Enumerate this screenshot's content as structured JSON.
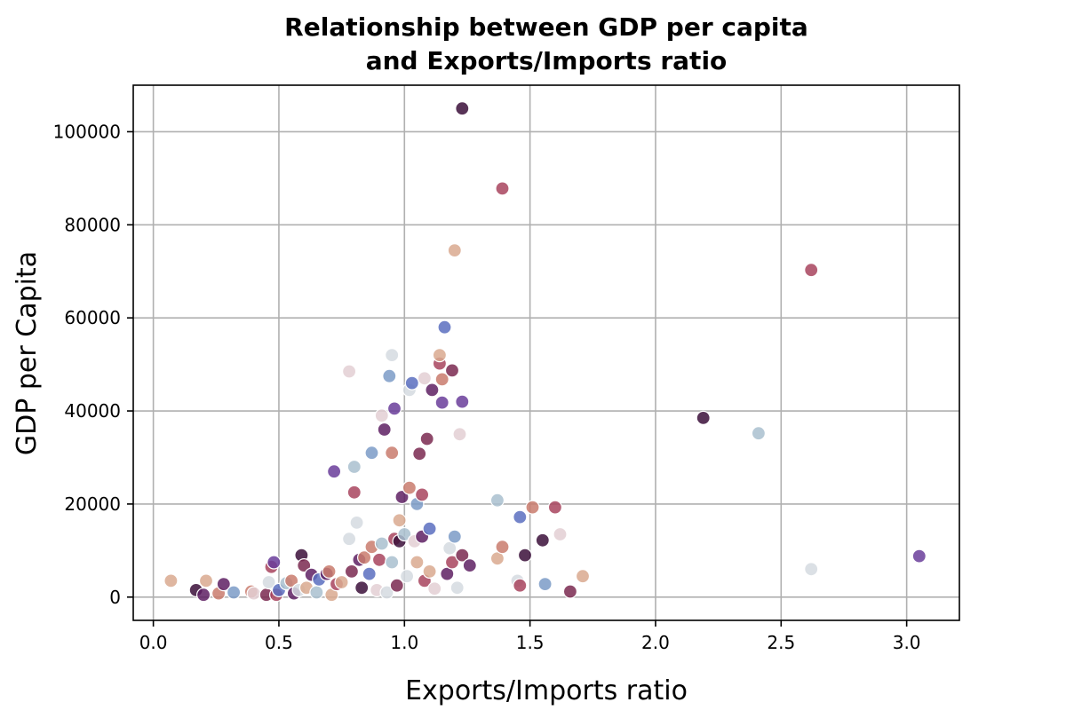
{
  "chart_data": {
    "type": "scatter",
    "title_lines": [
      "Relationship between GDP per capita",
      "and Exports/Imports ratio"
    ],
    "xlabel": "Exports/Imports ratio",
    "ylabel": "GDP per Capita",
    "xlim": [
      -0.08,
      3.21
    ],
    "ylim": [
      -5000,
      110000
    ],
    "xticks": [
      0.0,
      0.5,
      1.0,
      1.5,
      2.0,
      2.5,
      3.0
    ],
    "xtick_labels": [
      "0.0",
      "0.5",
      "1.0",
      "1.5",
      "2.0",
      "2.5",
      "3.0"
    ],
    "yticks": [
      0,
      20000,
      40000,
      60000,
      80000,
      100000
    ],
    "ytick_labels": [
      "0",
      "20000",
      "40000",
      "60000",
      "80000",
      "100000"
    ],
    "grid": true,
    "palette": [
      "#3b0f3a",
      "#5e2063",
      "#6a3d9a",
      "#5b6fbf",
      "#7b9bc7",
      "#a9bfcf",
      "#d5dbe0",
      "#e3cfd4",
      "#d9a98f",
      "#c97b6d",
      "#a8445e",
      "#7a2950"
    ],
    "points": [
      [
        0.07,
        3500,
        8
      ],
      [
        0.17,
        1500,
        0
      ],
      [
        0.2,
        500,
        1
      ],
      [
        0.21,
        3500,
        8
      ],
      [
        0.26,
        800,
        9
      ],
      [
        0.28,
        2800,
        1
      ],
      [
        0.32,
        1000,
        4
      ],
      [
        0.39,
        1200,
        9
      ],
      [
        0.4,
        800,
        7
      ],
      [
        0.45,
        500,
        11
      ],
      [
        0.46,
        3200,
        6
      ],
      [
        0.47,
        6500,
        10
      ],
      [
        0.48,
        7500,
        2
      ],
      [
        0.49,
        500,
        10
      ],
      [
        0.5,
        1500,
        3
      ],
      [
        0.53,
        3000,
        5
      ],
      [
        0.55,
        3500,
        9
      ],
      [
        0.56,
        800,
        1
      ],
      [
        0.58,
        1500,
        6
      ],
      [
        0.59,
        9000,
        0
      ],
      [
        0.6,
        6800,
        11
      ],
      [
        0.61,
        2000,
        8
      ],
      [
        0.63,
        4800,
        1
      ],
      [
        0.65,
        1000,
        5
      ],
      [
        0.66,
        3800,
        3
      ],
      [
        0.69,
        5000,
        1
      ],
      [
        0.7,
        5500,
        9
      ],
      [
        0.71,
        500,
        8
      ],
      [
        0.72,
        27000,
        2
      ],
      [
        0.73,
        2800,
        10
      ],
      [
        0.75,
        3200,
        8
      ],
      [
        0.78,
        12500,
        6
      ],
      [
        0.78,
        48500,
        7
      ],
      [
        0.79,
        5500,
        11
      ],
      [
        0.8,
        22500,
        10
      ],
      [
        0.8,
        28000,
        5
      ],
      [
        0.81,
        16000,
        6
      ],
      [
        0.82,
        8000,
        1
      ],
      [
        0.83,
        2000,
        0
      ],
      [
        0.84,
        8500,
        9
      ],
      [
        0.86,
        5000,
        3
      ],
      [
        0.87,
        10800,
        9
      ],
      [
        0.87,
        31000,
        4
      ],
      [
        0.89,
        1500,
        7
      ],
      [
        0.9,
        8000,
        10
      ],
      [
        0.91,
        11500,
        5
      ],
      [
        0.91,
        39000,
        7
      ],
      [
        0.92,
        36000,
        1
      ],
      [
        0.93,
        1000,
        6
      ],
      [
        0.94,
        47500,
        4
      ],
      [
        0.95,
        52000,
        6
      ],
      [
        0.95,
        7500,
        5
      ],
      [
        0.95,
        31000,
        9
      ],
      [
        0.96,
        40500,
        2
      ],
      [
        0.96,
        12500,
        10
      ],
      [
        0.97,
        2500,
        11
      ],
      [
        0.98,
        12000,
        0
      ],
      [
        0.98,
        16500,
        8
      ],
      [
        0.99,
        21500,
        1
      ],
      [
        1.0,
        13500,
        5
      ],
      [
        1.01,
        4500,
        6
      ],
      [
        1.02,
        23500,
        9
      ],
      [
        1.02,
        44500,
        6
      ],
      [
        1.03,
        46000,
        3
      ],
      [
        1.04,
        12000,
        7
      ],
      [
        1.05,
        20000,
        4
      ],
      [
        1.05,
        7500,
        8
      ],
      [
        1.06,
        30800,
        11
      ],
      [
        1.07,
        13000,
        1
      ],
      [
        1.07,
        22000,
        10
      ],
      [
        1.08,
        47000,
        7
      ],
      [
        1.08,
        3500,
        10
      ],
      [
        1.09,
        34000,
        11
      ],
      [
        1.1,
        14700,
        3
      ],
      [
        1.1,
        5500,
        8
      ],
      [
        1.11,
        44500,
        1
      ],
      [
        1.12,
        1800,
        7
      ],
      [
        1.14,
        50200,
        10
      ],
      [
        1.14,
        52000,
        8
      ],
      [
        1.15,
        41800,
        2
      ],
      [
        1.15,
        46800,
        9
      ],
      [
        1.16,
        58000,
        3
      ],
      [
        1.17,
        5000,
        1
      ],
      [
        1.18,
        10500,
        6
      ],
      [
        1.19,
        48700,
        11
      ],
      [
        1.19,
        7500,
        10
      ],
      [
        1.2,
        74500,
        8
      ],
      [
        1.2,
        13000,
        4
      ],
      [
        1.21,
        2000,
        6
      ],
      [
        1.22,
        35000,
        7
      ],
      [
        1.23,
        105000,
        0
      ],
      [
        1.23,
        42000,
        2
      ],
      [
        1.23,
        9000,
        11
      ],
      [
        1.26,
        6800,
        1
      ],
      [
        1.37,
        20800,
        5
      ],
      [
        1.37,
        8300,
        8
      ],
      [
        1.39,
        87800,
        10
      ],
      [
        1.39,
        10800,
        9
      ],
      [
        1.45,
        3500,
        6
      ],
      [
        1.46,
        17200,
        3
      ],
      [
        1.46,
        2500,
        10
      ],
      [
        1.48,
        9000,
        0
      ],
      [
        1.51,
        19300,
        9
      ],
      [
        1.55,
        12200,
        0
      ],
      [
        1.56,
        2800,
        4
      ],
      [
        1.6,
        19300,
        10
      ],
      [
        1.62,
        13500,
        7
      ],
      [
        1.66,
        1200,
        11
      ],
      [
        1.71,
        4500,
        8
      ],
      [
        2.19,
        38500,
        0
      ],
      [
        2.41,
        35200,
        5
      ],
      [
        2.62,
        70300,
        10
      ],
      [
        2.62,
        6000,
        6
      ],
      [
        3.05,
        8800,
        2
      ]
    ]
  }
}
